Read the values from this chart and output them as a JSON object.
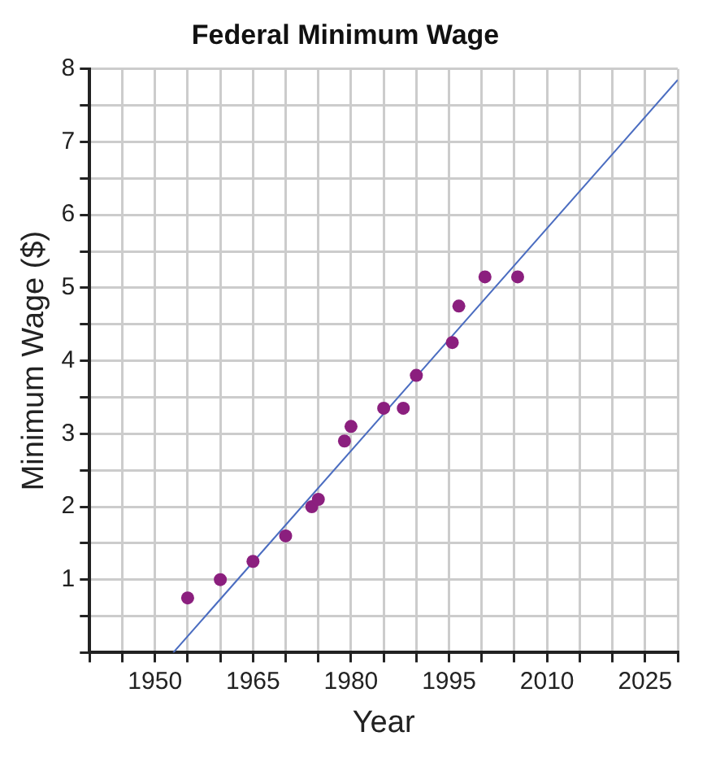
{
  "chart_data": {
    "type": "scatter",
    "title": "Federal Minimum Wage",
    "xlabel": "Year",
    "ylabel": "Minimum Wage ($)",
    "series": [
      {
        "color": "#8b1f7e",
        "x": [
          1955,
          1960,
          1965,
          1970,
          1974,
          1975,
          1979,
          1980,
          1985,
          1988,
          1990,
          1995.5,
          1996.5,
          2000.5,
          2005.5
        ],
        "values": [
          0.75,
          1.0,
          1.25,
          1.6,
          2.0,
          2.1,
          2.9,
          3.1,
          3.35,
          3.35,
          3.8,
          4.25,
          4.75,
          5.15,
          5.15
        ]
      },
      {
        "type": "line",
        "marker": "none",
        "color": "#4a6cc0",
        "x": [
          1952.8,
          2030
        ],
        "values": [
          0,
          7.85
        ]
      }
    ],
    "xlim": [
      1940,
      2030
    ],
    "xticks": [
      {
        "value": 1940,
        "label": null
      },
      {
        "value": 1945,
        "label": null
      },
      1950,
      {
        "value": 1955,
        "label": null
      },
      {
        "value": 1960,
        "label": null
      },
      1965,
      {
        "value": 1970,
        "label": null
      },
      {
        "value": 1975,
        "label": null
      },
      1980,
      {
        "value": 1985,
        "label": null
      },
      {
        "value": 1990,
        "label": null
      },
      1995,
      {
        "value": 2000,
        "label": null
      },
      {
        "value": 2005,
        "label": null
      },
      2010,
      {
        "value": 2015,
        "label": null
      },
      {
        "value": 2020,
        "label": null
      },
      2025,
      {
        "value": 2030,
        "label": null
      }
    ],
    "ylim": [
      0,
      8
    ],
    "yticks": [
      {
        "value": 0,
        "label": null
      },
      {
        "value": 0.5,
        "label": null
      },
      1,
      {
        "value": 1.5,
        "label": null
      },
      2,
      {
        "value": 2.5,
        "label": null
      },
      3,
      {
        "value": 3.5,
        "label": null
      },
      4,
      {
        "value": 4.5,
        "label": null
      },
      5,
      {
        "value": 5.5,
        "label": null
      },
      6,
      {
        "value": 6.5,
        "label": null
      },
      7,
      {
        "value": 7.5,
        "label": null
      },
      8
    ],
    "grid": true,
    "marker": "circle",
    "line_style": "solid"
  }
}
